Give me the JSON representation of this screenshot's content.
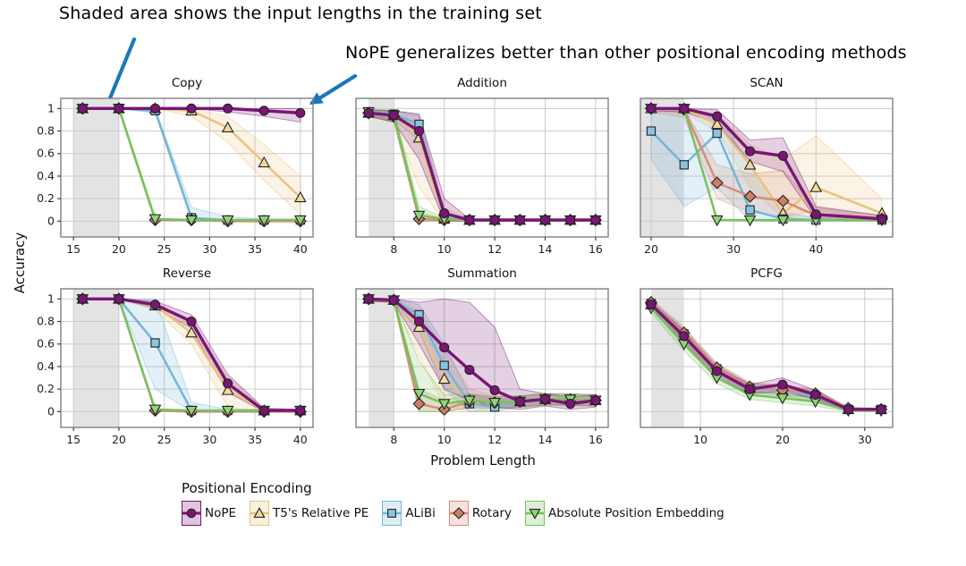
{
  "annotations": {
    "color": "#1879b8",
    "shaded_note": "Shaded area shows the input lengths in the training set",
    "nope_note": "NoPE generalizes better than other positional encoding methods"
  },
  "axis": {
    "ylabel": "Accuracy",
    "xlabel": "Problem Length",
    "yticks": [
      0,
      0.2,
      0.4,
      0.6,
      0.8,
      1
    ]
  },
  "legend_title": "Positional Encoding",
  "methods": [
    {
      "name": "NoPE",
      "marker": "circle",
      "color": "#7a1575",
      "marker_fill": "#7a1575"
    },
    {
      "name": "T5's Relative PE",
      "marker": "triangle-up",
      "color": "#e9c27d",
      "marker_fill": "#f2d9a0"
    },
    {
      "name": "ALiBi",
      "marker": "square",
      "color": "#74b6d6",
      "marker_fill": "#8ac4e0"
    },
    {
      "name": "Rotary",
      "marker": "diamond",
      "color": "#d68d79",
      "marker_fill": "#cd7f66"
    },
    {
      "name": "Absolute Position Embedding",
      "marker": "triangle-down",
      "color": "#77c25b",
      "marker_fill": "#8ed47a"
    }
  ],
  "chart_data": [
    {
      "type": "line",
      "title": "Copy",
      "xlim": [
        13.6,
        41.4
      ],
      "xticks": [
        15,
        20,
        25,
        30,
        35,
        40
      ],
      "shaded": [
        15,
        20
      ],
      "x": [
        16,
        20,
        24,
        28,
        32,
        36,
        40
      ],
      "series": [
        {
          "name": "NoPE",
          "y": [
            1,
            1,
            1,
            1,
            1,
            0.98,
            0.96
          ],
          "lo": [
            1,
            1,
            1,
            1,
            0.97,
            0.93,
            0.88
          ],
          "hi": [
            1,
            1,
            1,
            1,
            1,
            1,
            1
          ]
        },
        {
          "name": "T5's Relative PE",
          "y": [
            1,
            1,
            1,
            0.98,
            0.83,
            0.52,
            0.21
          ],
          "lo": [
            1,
            1,
            1,
            0.93,
            0.7,
            0.36,
            0.06
          ],
          "hi": [
            1,
            1,
            1,
            1,
            0.93,
            0.68,
            0.4
          ]
        },
        {
          "name": "ALiBi",
          "y": [
            1,
            1,
            0.98,
            0.03,
            0.01,
            0.01,
            0.01
          ],
          "lo": [
            1,
            1,
            0.96,
            0,
            0,
            0,
            0
          ],
          "hi": [
            1,
            1,
            1,
            0.12,
            0.04,
            0.02,
            0.02
          ]
        },
        {
          "name": "Rotary",
          "y": [
            1,
            1,
            0.01,
            0.01,
            0,
            0,
            0
          ]
        },
        {
          "name": "Absolute Position Embedding",
          "y": [
            1,
            1,
            0.02,
            0.01,
            0.01,
            0.01,
            0.01
          ]
        }
      ]
    },
    {
      "type": "line",
      "title": "Addition",
      "xlim": [
        6.5,
        16.5
      ],
      "xticks": [
        8,
        10,
        12,
        14,
        16
      ],
      "shaded": [
        7,
        8
      ],
      "x": [
        7,
        8,
        9,
        10,
        11,
        12,
        13,
        14,
        15,
        16
      ],
      "series": [
        {
          "name": "NoPE",
          "y": [
            0.96,
            0.94,
            0.8,
            0.07,
            0.01,
            0.01,
            0.01,
            0.01,
            0.01,
            0.01
          ],
          "lo": [
            0.93,
            0.88,
            0.55,
            0,
            0,
            0,
            0,
            0,
            0,
            0
          ],
          "hi": [
            0.99,
            0.98,
            0.95,
            0.2,
            0.02,
            0.02,
            0.02,
            0.02,
            0.02,
            0.02
          ]
        },
        {
          "name": "T5's Relative PE",
          "y": [
            0.96,
            0.94,
            0.74,
            0.02,
            0.01,
            0.01,
            0.01,
            0.01,
            0.01,
            0.01
          ],
          "lo": [
            0.93,
            0.88,
            0.3,
            0,
            0,
            0,
            0,
            0,
            0,
            0
          ],
          "hi": [
            0.99,
            0.98,
            0.93,
            0.12,
            0.02,
            0.02,
            0.02,
            0.02,
            0.02,
            0.02
          ]
        },
        {
          "name": "ALiBi",
          "y": [
            0.97,
            0.95,
            0.86,
            0.02,
            0.01,
            0.01,
            0.01,
            0.01,
            0.01,
            0.01
          ],
          "lo": [
            0.94,
            0.9,
            0.72,
            0,
            0,
            0,
            0,
            0,
            0,
            0
          ],
          "hi": [
            0.99,
            0.98,
            0.95,
            0.06,
            0.02,
            0.02,
            0.02,
            0.02,
            0.02,
            0.02
          ]
        },
        {
          "name": "Rotary",
          "y": [
            0.96,
            0.93,
            0.02,
            0.01,
            0.01,
            0.01,
            0.01,
            0.01,
            0.01,
            0.01
          ],
          "lo": [
            0.93,
            0.88,
            0,
            0,
            0,
            0,
            0,
            0,
            0,
            0
          ],
          "hi": [
            0.99,
            0.97,
            0.08,
            0.02,
            0.02,
            0.02,
            0.02,
            0.02,
            0.02,
            0.02
          ]
        },
        {
          "name": "Absolute Position Embedding",
          "y": [
            0.97,
            0.94,
            0.05,
            0.02,
            0.01,
            0.01,
            0.01,
            0.01,
            0.01,
            0.01
          ],
          "lo": [
            0.94,
            0.89,
            0,
            0,
            0,
            0,
            0,
            0,
            0,
            0
          ],
          "hi": [
            0.99,
            0.98,
            0.13,
            0.03,
            0.02,
            0.02,
            0.02,
            0.02,
            0.02,
            0.02
          ]
        }
      ]
    },
    {
      "type": "line",
      "title": "SCAN",
      "xlim": [
        18.7,
        49.3
      ],
      "xticks": [
        20,
        30,
        40
      ],
      "shaded": [
        18.7,
        24
      ],
      "x": [
        20,
        24,
        28,
        32,
        36,
        40,
        48
      ],
      "series": [
        {
          "name": "NoPE",
          "y": [
            1,
            1,
            0.93,
            0.62,
            0.58,
            0.06,
            0.02
          ],
          "lo": [
            0.98,
            0.97,
            0.87,
            0.53,
            0.44,
            0.02,
            0
          ],
          "hi": [
            1,
            1,
            0.99,
            0.72,
            0.74,
            0.13,
            0.05
          ]
        },
        {
          "name": "T5's Relative PE",
          "y": [
            1,
            1,
            0.86,
            0.5,
            0.07,
            0.3,
            0.07
          ],
          "lo": [
            0.98,
            0.96,
            0.8,
            0.3,
            0.03,
            0.1,
            0.02
          ],
          "hi": [
            1,
            1,
            0.95,
            0.68,
            0.55,
            0.76,
            0.2
          ]
        },
        {
          "name": "ALiBi",
          "y": [
            0.8,
            0.5,
            0.78,
            0.1,
            0.02,
            0.01,
            0.01
          ],
          "lo": [
            0.55,
            0.13,
            0.3,
            0,
            0,
            0,
            0
          ],
          "hi": [
            0.97,
            0.97,
            0.95,
            0.5,
            0.08,
            0.03,
            0.03
          ]
        },
        {
          "name": "Rotary",
          "y": [
            1,
            0.99,
            0.34,
            0.22,
            0.18,
            0.05,
            0.02
          ],
          "lo": [
            0.97,
            0.92,
            0.2,
            0.08,
            0.04,
            0,
            0
          ],
          "hi": [
            1,
            1,
            0.5,
            0.42,
            0.45,
            0.12,
            0.05
          ]
        },
        {
          "name": "Absolute Position Embedding",
          "y": [
            1,
            1,
            0.01,
            0.01,
            0.01,
            0.01,
            0.01
          ]
        }
      ]
    },
    {
      "type": "line",
      "title": "Reverse",
      "xlim": [
        13.6,
        41.4
      ],
      "xticks": [
        15,
        20,
        25,
        30,
        35,
        40
      ],
      "shaded": [
        15,
        20
      ],
      "x": [
        16,
        20,
        24,
        28,
        32,
        36,
        40
      ],
      "series": [
        {
          "name": "NoPE",
          "y": [
            1,
            1,
            0.95,
            0.8,
            0.25,
            0.01,
            0.01
          ],
          "lo": [
            1,
            1,
            0.92,
            0.74,
            0.17,
            0,
            0
          ],
          "hi": [
            1,
            1,
            0.98,
            0.86,
            0.33,
            0.03,
            0.02
          ]
        },
        {
          "name": "T5's Relative PE",
          "y": [
            1,
            1,
            0.94,
            0.7,
            0.19,
            0.01,
            0.01
          ],
          "lo": [
            1,
            1,
            0.9,
            0.6,
            0.04,
            0,
            0
          ],
          "hi": [
            1,
            1,
            0.97,
            0.79,
            0.3,
            0.03,
            0.02
          ]
        },
        {
          "name": "ALiBi",
          "y": [
            1,
            1,
            0.61,
            0.01,
            0.01,
            0.01,
            0.01
          ],
          "lo": [
            1,
            1,
            0.2,
            0,
            0,
            0,
            0
          ],
          "hi": [
            1,
            1,
            1,
            0.08,
            0.02,
            0.02,
            0.02
          ]
        },
        {
          "name": "Rotary",
          "y": [
            1,
            1,
            0.01,
            0,
            0,
            0,
            0
          ]
        },
        {
          "name": "Absolute Position Embedding",
          "y": [
            1,
            1,
            0.02,
            0.01,
            0.01,
            0.01,
            0.01
          ]
        }
      ]
    },
    {
      "type": "line",
      "title": "Summation",
      "xlim": [
        6.5,
        16.5
      ],
      "xticks": [
        8,
        10,
        12,
        14,
        16
      ],
      "shaded": [
        7,
        8
      ],
      "x": [
        7,
        8,
        9,
        10,
        11,
        12,
        13,
        14,
        15,
        16
      ],
      "series": [
        {
          "name": "NoPE",
          "y": [
            1,
            0.99,
            0.8,
            0.57,
            0.37,
            0.19,
            0.09,
            0.11,
            0.07,
            0.1
          ],
          "lo": [
            0.98,
            0.97,
            0.6,
            0.2,
            0.1,
            0.04,
            0.02,
            0.05,
            0.02,
            0.04
          ],
          "hi": [
            1,
            1,
            0.97,
            1,
            0.97,
            0.75,
            0.2,
            0.16,
            0.13,
            0.15
          ]
        },
        {
          "name": "T5's Relative PE",
          "y": [
            1,
            0.99,
            0.75,
            0.29,
            0.1,
            0.08,
            0.09,
            0.11,
            0.11,
            0.1
          ],
          "lo": [
            0.98,
            0.97,
            0.5,
            0.05,
            0,
            0.02,
            0.04,
            0.06,
            0.06,
            0.05
          ],
          "hi": [
            1,
            1,
            0.9,
            0.55,
            0.2,
            0.14,
            0.14,
            0.16,
            0.16,
            0.15
          ]
        },
        {
          "name": "ALiBi",
          "y": [
            1,
            0.99,
            0.86,
            0.41,
            0.07,
            0.04,
            0.09,
            0.11,
            0.11,
            0.1
          ],
          "lo": [
            0.98,
            0.97,
            0.72,
            0.2,
            0,
            0,
            0.04,
            0.06,
            0.06,
            0.05
          ],
          "hi": [
            1,
            1,
            0.95,
            0.6,
            0.15,
            0.1,
            0.14,
            0.16,
            0.16,
            0.15
          ]
        },
        {
          "name": "Rotary",
          "y": [
            1,
            0.99,
            0.07,
            0.02,
            0.09,
            0.08,
            0.09,
            0.11,
            0.1,
            0.1
          ],
          "lo": [
            0.98,
            0.97,
            0,
            0,
            0.03,
            0.03,
            0.04,
            0.06,
            0.05,
            0.05
          ],
          "hi": [
            1,
            1,
            0.2,
            0.1,
            0.15,
            0.13,
            0.14,
            0.16,
            0.15,
            0.15
          ]
        },
        {
          "name": "Absolute Position Embedding",
          "y": [
            1,
            0.99,
            0.16,
            0.07,
            0.1,
            0.08,
            0.09,
            0.11,
            0.11,
            0.1
          ],
          "lo": [
            0.98,
            0.97,
            0,
            0,
            0.04,
            0.03,
            0.04,
            0.06,
            0.06,
            0.05
          ],
          "hi": [
            1,
            1,
            0.45,
            0.15,
            0.16,
            0.13,
            0.14,
            0.16,
            0.16,
            0.15
          ]
        }
      ]
    },
    {
      "type": "line",
      "title": "PCFG",
      "xlim": [
        2.7,
        33.4
      ],
      "xticks": [
        10,
        20,
        30
      ],
      "shaded": [
        4,
        8
      ],
      "x": [
        4,
        8,
        12,
        16,
        20,
        24,
        28,
        32
      ],
      "series": [
        {
          "name": "NoPE",
          "y": [
            0.95,
            0.67,
            0.36,
            0.2,
            0.24,
            0.15,
            0.02,
            0.02
          ],
          "lo": [
            0.92,
            0.62,
            0.32,
            0.16,
            0.18,
            0.11,
            0.01,
            0.01
          ],
          "hi": [
            0.98,
            0.72,
            0.4,
            0.24,
            0.3,
            0.19,
            0.03,
            0.03
          ]
        },
        {
          "name": "T5's Relative PE",
          "y": [
            0.95,
            0.68,
            0.37,
            0.21,
            0.18,
            0.16,
            0.02,
            0.02
          ],
          "lo": [
            0.92,
            0.63,
            0.33,
            0.17,
            0.14,
            0.12,
            0.01,
            0.01
          ],
          "hi": [
            0.98,
            0.73,
            0.41,
            0.25,
            0.22,
            0.2,
            0.03,
            0.03
          ]
        },
        {
          "name": "ALiBi",
          "y": [
            0.96,
            0.69,
            0.38,
            0.21,
            0.18,
            0.14,
            0.02,
            0.02
          ],
          "lo": [
            0.93,
            0.64,
            0.34,
            0.17,
            0.14,
            0.1,
            0.01,
            0.01
          ],
          "hi": [
            0.99,
            0.74,
            0.42,
            0.25,
            0.22,
            0.18,
            0.03,
            0.03
          ]
        },
        {
          "name": "Rotary",
          "y": [
            0.97,
            0.7,
            0.39,
            0.22,
            0.19,
            0.16,
            0.03,
            0.02
          ],
          "lo": [
            0.94,
            0.65,
            0.35,
            0.18,
            0.15,
            0.12,
            0.02,
            0.01
          ],
          "hi": [
            1,
            0.75,
            0.43,
            0.26,
            0.23,
            0.2,
            0.04,
            0.03
          ]
        },
        {
          "name": "Absolute Position Embedding",
          "y": [
            0.92,
            0.6,
            0.3,
            0.15,
            0.12,
            0.09,
            0.01,
            0.01
          ],
          "lo": [
            0.88,
            0.54,
            0.25,
            0.11,
            0.08,
            0.05,
            0,
            0
          ],
          "hi": [
            0.96,
            0.66,
            0.35,
            0.19,
            0.16,
            0.13,
            0.02,
            0.02
          ]
        }
      ]
    }
  ]
}
